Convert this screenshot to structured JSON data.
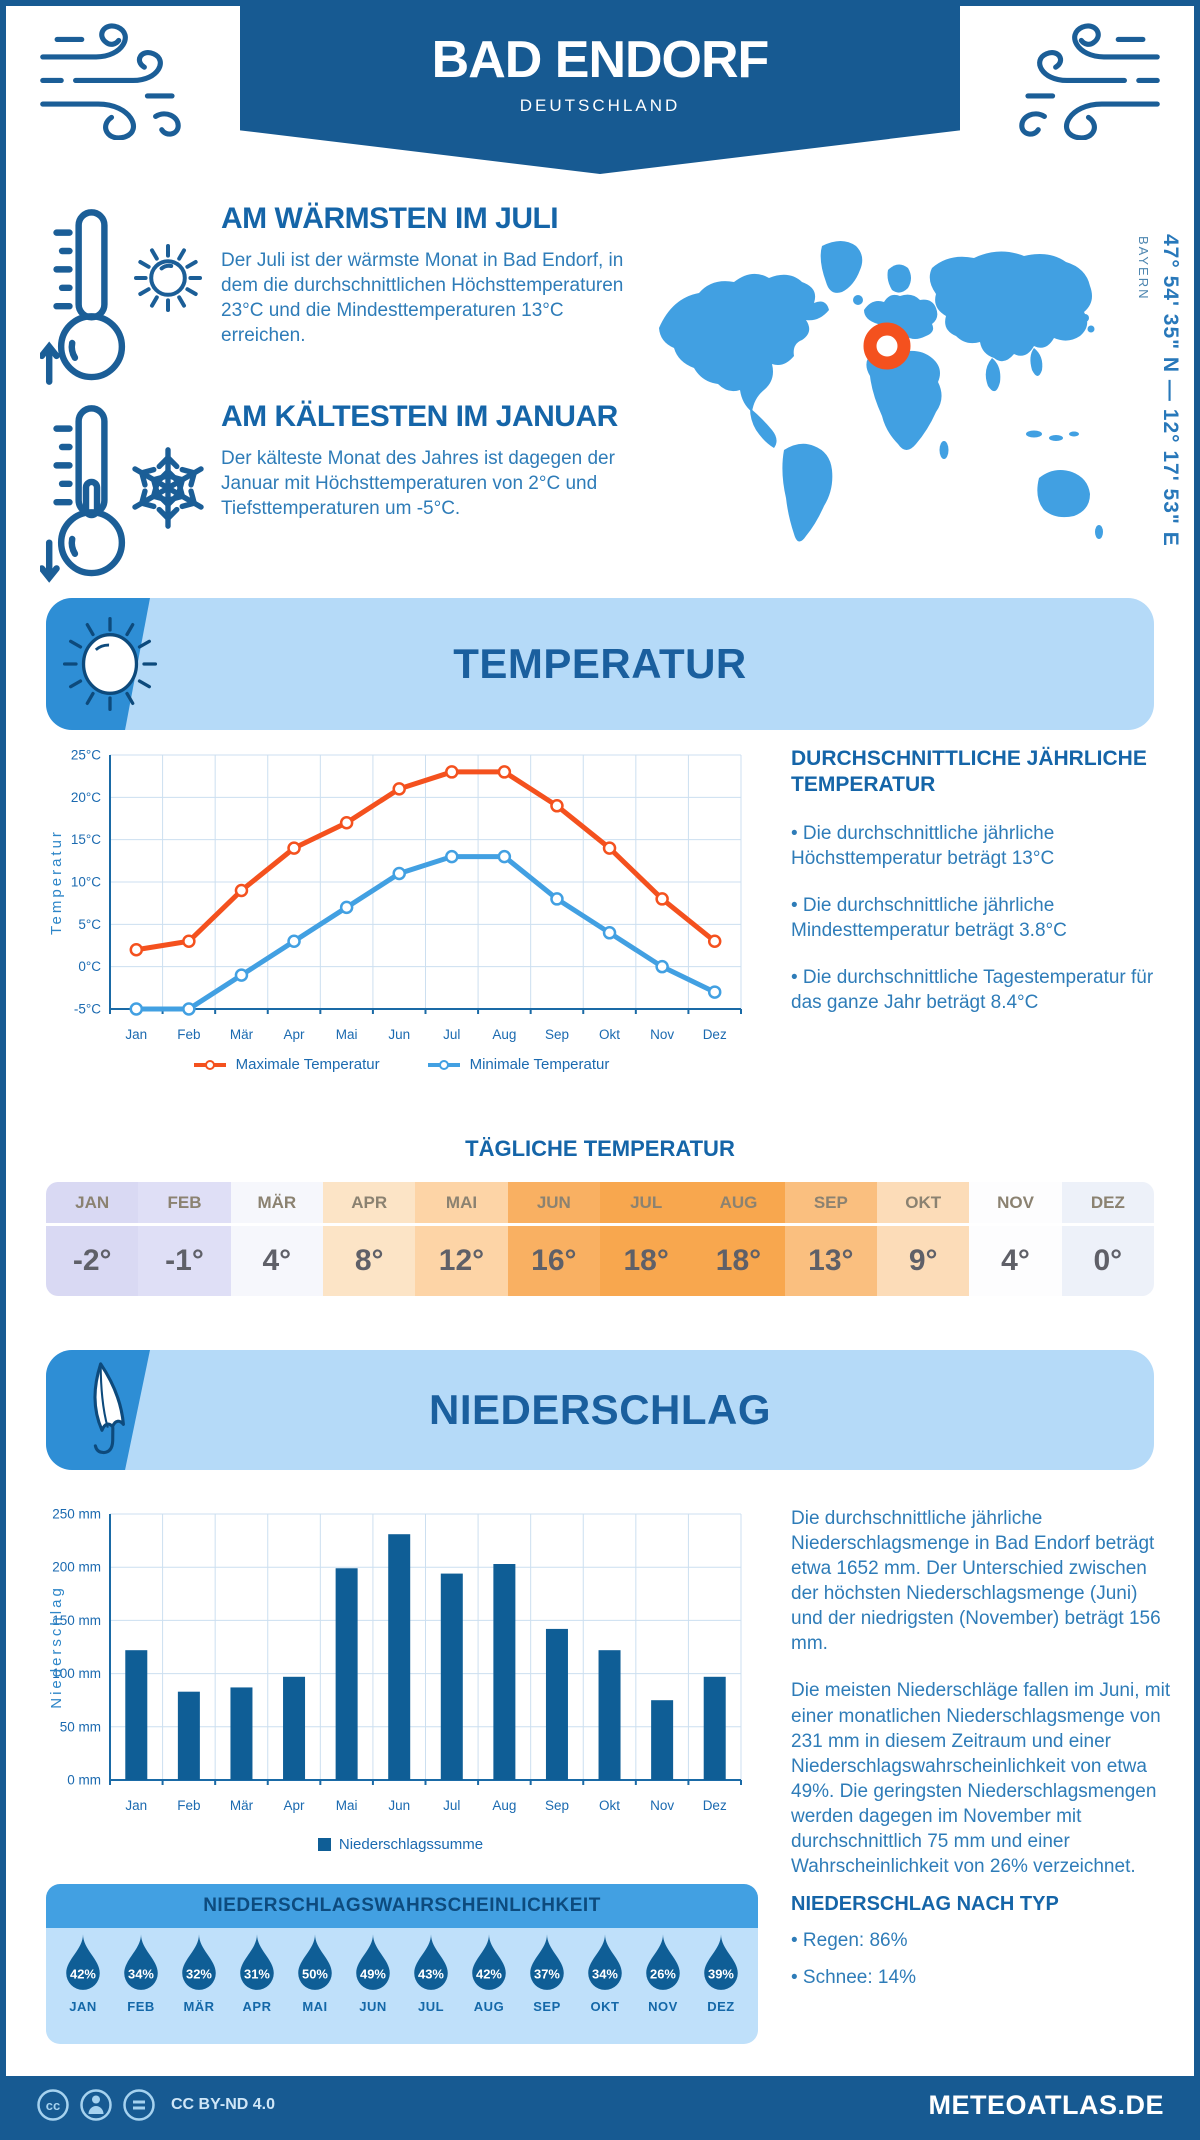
{
  "page": {
    "title": "BAD ENDORF",
    "subtitle": "DEUTSCHLAND",
    "coordinates": "47° 54' 35\" N — 12° 17' 53\" E",
    "region": "BAYERN"
  },
  "warmest": {
    "title": "AM WÄRMSTEN IM JULI",
    "text": "Der Juli ist der wärmste Monat in Bad Endorf, in dem die durchschnittlichen Höchsttemperaturen 23°C und die Mindesttemperaturen 13°C erreichen."
  },
  "coldest": {
    "title": "AM KÄLTESTEN IM JANUAR",
    "text": "Der kälteste Monat des Jahres ist dagegen der Januar mit Höchsttemperaturen von 2°C und Tiefsttemperaturen um -5°C."
  },
  "temperature_section": {
    "banner": "TEMPERATUR",
    "summary_title": "DURCHSCHNITTLICHE JÄHRLICHE TEMPERATUR",
    "bullets": [
      "• Die durchschnittliche jährliche Höchsttemperatur beträgt 13°C",
      "• Die durchschnittliche jährliche Mindesttemperatur beträgt 3.8°C",
      "• Die durchschnittliche Tagestemperatur für das ganze Jahr beträgt 8.4°C"
    ],
    "daily_title": "TÄGLICHE TEMPERATUR"
  },
  "precipitation_section": {
    "banner": "NIEDERSCHLAG",
    "paragraph1": "Die durchschnittliche jährliche Niederschlagsmenge in Bad Endorf beträgt etwa 1652 mm. Der Unterschied zwischen der höchsten Niederschlagsmenge (Juni) und der niedrigsten (November) beträgt 156 mm.",
    "paragraph2": "Die meisten Niederschläge fallen im Juni, mit einer monatlichen Niederschlagsmenge von 231 mm in diesem Zeitraum und einer Niederschlagswahrscheinlichkeit von etwa 49%. Die geringsten Niederschlagsmengen werden dagegen im November mit durchschnittlich 75 mm und einer Wahrscheinlichkeit von 26% verzeichnet.",
    "type_title": "NIEDERSCHLAG NACH TYP",
    "type_bullets": [
      "• Regen: 86%",
      "• Schnee: 14%"
    ],
    "probability_title": "NIEDERSCHLAGSWAHRSCHEINLICHKEIT"
  },
  "months_short": [
    "Jan",
    "Feb",
    "Mär",
    "Apr",
    "Mai",
    "Jun",
    "Jul",
    "Aug",
    "Sep",
    "Okt",
    "Nov",
    "Dez"
  ],
  "months_upper": [
    "JAN",
    "FEB",
    "MÄR",
    "APR",
    "MAI",
    "JUN",
    "JUL",
    "AUG",
    "SEP",
    "OKT",
    "NOV",
    "DEZ"
  ],
  "daily_temps": [
    "-2°",
    "-1°",
    "4°",
    "8°",
    "12°",
    "16°",
    "18°",
    "18°",
    "13°",
    "9°",
    "4°",
    "0°"
  ],
  "daily_colors": [
    "#d9d9f3",
    "#dfdff6",
    "#f6f7fc",
    "#fce4c6",
    "#fdd4a6",
    "#f9b062",
    "#f8a74e",
    "#f8a74e",
    "#fabf7f",
    "#fcdcb8",
    "#fdfdfe",
    "#edf1f9"
  ],
  "chart_data": [
    {
      "type": "line",
      "categories": [
        "Jan",
        "Feb",
        "Mär",
        "Apr",
        "Mai",
        "Jun",
        "Jul",
        "Aug",
        "Sep",
        "Okt",
        "Nov",
        "Dez"
      ],
      "series": [
        {
          "name": "Maximale Temperatur",
          "color": "#f4511e",
          "values": [
            2,
            3,
            9,
            14,
            17,
            21,
            23,
            23,
            19,
            14,
            8,
            3
          ]
        },
        {
          "name": "Minimale Temperatur",
          "color": "#42a0e2",
          "values": [
            -5,
            -5,
            -1,
            3,
            7,
            11,
            13,
            13,
            8,
            4,
            0,
            -3
          ]
        }
      ],
      "ylabel": "Temperatur",
      "xlabel": "",
      "title": "",
      "ylim": [
        -5,
        25
      ],
      "ytick_step": 5,
      "yunit": "°C",
      "grid": true,
      "legend_position": "bottom"
    },
    {
      "type": "bar",
      "categories": [
        "Jan",
        "Feb",
        "Mär",
        "Apr",
        "Mai",
        "Jun",
        "Jul",
        "Aug",
        "Sep",
        "Okt",
        "Nov",
        "Dez"
      ],
      "series": [
        {
          "name": "Niederschlagssumme",
          "color": "#0f5e96",
          "values": [
            122,
            83,
            87,
            97,
            199,
            231,
            194,
            203,
            142,
            122,
            75,
            97
          ]
        }
      ],
      "ylabel": "Niederschlag",
      "xlabel": "",
      "title": "",
      "ylim": [
        0,
        250
      ],
      "ytick_step": 50,
      "yunit": " mm",
      "grid": true,
      "legend_position": "bottom"
    }
  ],
  "probability": {
    "values": [
      "42%",
      "34%",
      "32%",
      "31%",
      "50%",
      "49%",
      "43%",
      "42%",
      "37%",
      "34%",
      "26%",
      "39%"
    ],
    "months": [
      "JAN",
      "FEB",
      "MÄR",
      "APR",
      "MAI",
      "JUN",
      "JUL",
      "AUG",
      "SEP",
      "OKT",
      "NOV",
      "DEZ"
    ]
  },
  "icons": {
    "header": "wind-icon",
    "warmest": "thermometer-up-icon, sun-icon",
    "coldest": "thermometer-down-icon, snowflake-icon",
    "temperature_banner": "sun-icon",
    "precipitation_banner": "umbrella-icon",
    "probability": "water-drop-icon",
    "map_marker": "location-ring-icon",
    "footer": "cc-icon, person-icon, nd-icon"
  },
  "colors": {
    "primary": "#175a92",
    "tab_blue": "#2e8ed5",
    "light_banner": "#b5daf8",
    "map_blue": "#41a0e2",
    "accent_orange": "#f4511e",
    "bar": "#0f5e96",
    "text_blue": "#2e7cb8",
    "title_blue": "#1565a8"
  },
  "footer": {
    "license": "CC BY-ND 4.0",
    "site": "METEOATLAS.DE"
  }
}
